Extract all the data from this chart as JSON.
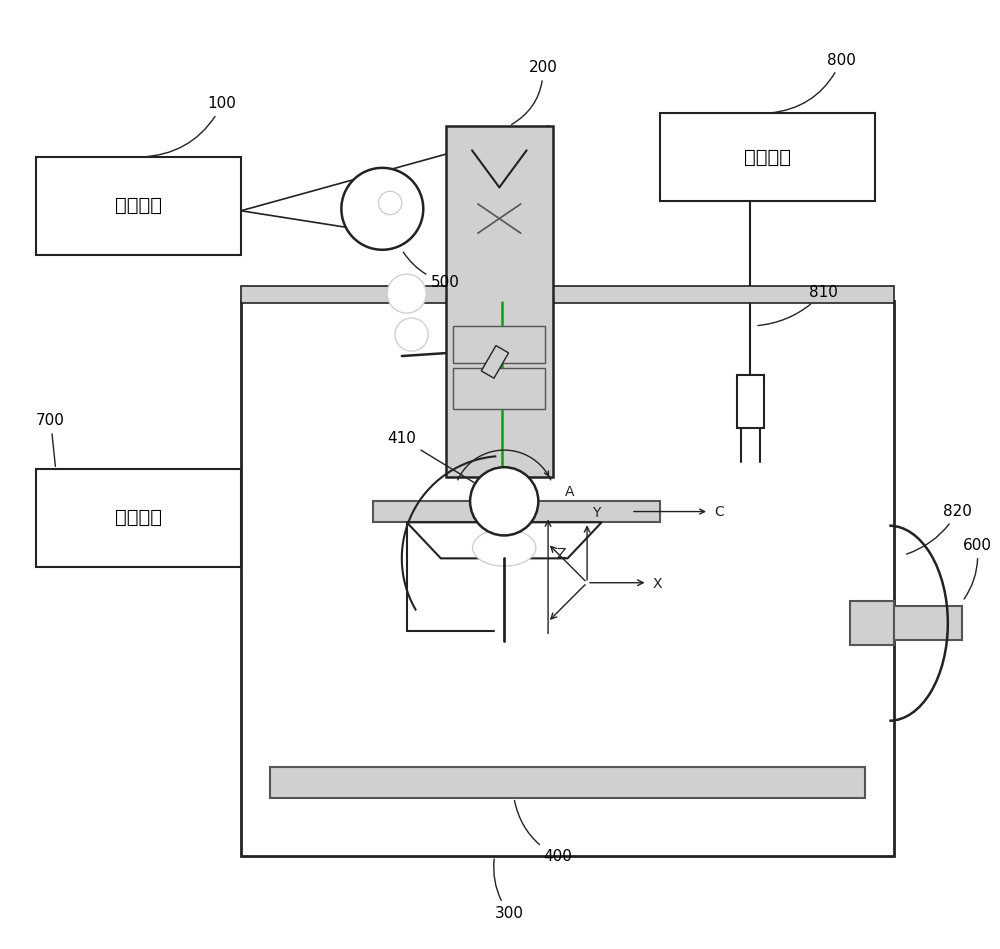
{
  "bg_color": "#ffffff",
  "line_color": "#222222",
  "gray_color": "#888888",
  "light_gray": "#d0d0d0",
  "dark_gray": "#555555",
  "green_line": "#00aa00",
  "text_100": "控制系统",
  "text_700": "真空系统",
  "text_800": "惰性气体"
}
